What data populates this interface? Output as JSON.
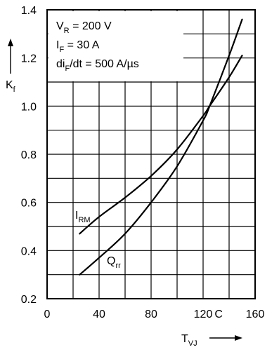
{
  "chart_data": {
    "type": "line",
    "xlim": [
      0,
      160
    ],
    "ylim": [
      0.2,
      1.4
    ],
    "grid": true,
    "x_ticks": [
      {
        "value": 0,
        "label": "0"
      },
      {
        "value": 40,
        "label": "40"
      },
      {
        "value": 80,
        "label": "80"
      },
      {
        "value": 120,
        "label": "120"
      },
      {
        "value": 160,
        "label": "160"
      }
    ],
    "x_unit": "C",
    "y_ticks": [
      {
        "value": 0.2,
        "label": "0.2"
      },
      {
        "value": 0.4,
        "label": "0.4"
      },
      {
        "value": 0.6,
        "label": "0.6"
      },
      {
        "value": 0.8,
        "label": "0.8"
      },
      {
        "value": 1.0,
        "label": "1.0"
      },
      {
        "value": 1.2,
        "label": "1.2"
      },
      {
        "value": 1.4,
        "label": "1.4"
      }
    ],
    "xlabel": {
      "main": "T",
      "sub": "VJ"
    },
    "ylabel": {
      "main": "K",
      "sub": "f"
    },
    "conditions": [
      {
        "pre": "V",
        "sub": "R",
        "post": " = 200 V"
      },
      {
        "pre": "I",
        "sub": "F",
        "post": " = 30 A"
      },
      {
        "pre": "di",
        "sub": "F",
        "post": "/dt = 500 A/µs"
      }
    ],
    "series": [
      {
        "name": "I_RM",
        "label": {
          "main": "I",
          "sub": "RM"
        },
        "x": [
          25,
          40,
          60,
          80,
          100,
          120,
          125,
          140,
          150
        ],
        "y": [
          0.47,
          0.54,
          0.62,
          0.71,
          0.82,
          0.96,
          1.0,
          1.12,
          1.21
        ]
      },
      {
        "name": "Q_rr",
        "label": {
          "main": "Q",
          "sub": "rr"
        },
        "x": [
          25,
          40,
          60,
          80,
          100,
          120,
          125,
          140,
          150
        ],
        "y": [
          0.3,
          0.37,
          0.47,
          0.6,
          0.75,
          0.94,
          1.0,
          1.21,
          1.36
        ]
      }
    ]
  }
}
